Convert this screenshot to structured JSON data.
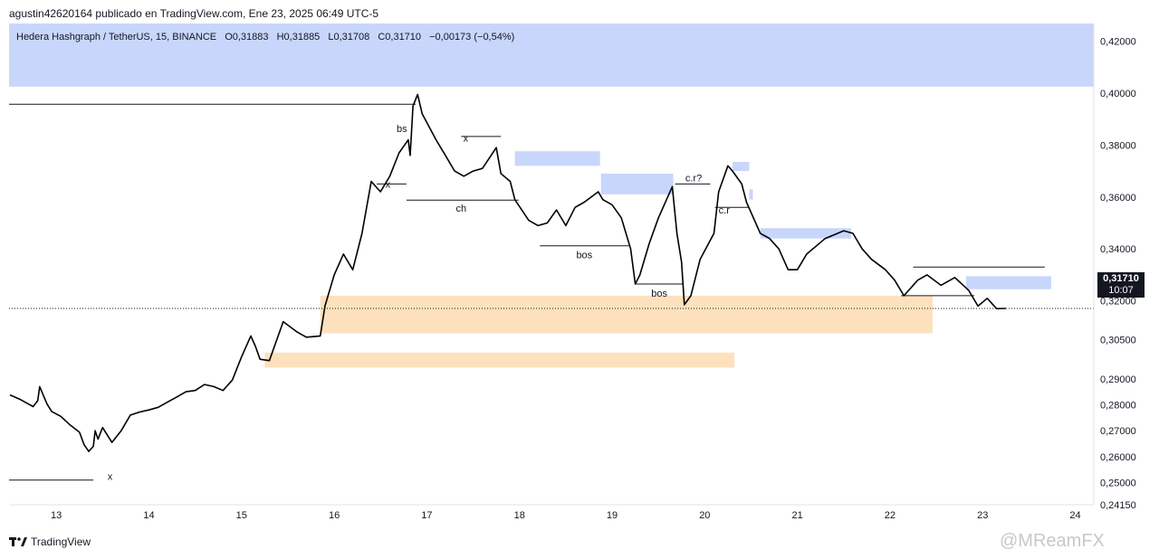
{
  "header": {
    "attribution": "agustin42620164 publicado en TradingView.com, Ene 23, 2025 06:49 UTC-5"
  },
  "symbol": {
    "name": "Hedera Hashgraph / TetherUS, 15, BINANCE",
    "open": "O0,31883",
    "high": "H0,31885",
    "low": "L0,31708",
    "close": "C0,31710",
    "change": "−0,00173 (−0,54%)"
  },
  "price_badge": {
    "price": "0,31710",
    "countdown": "10:07"
  },
  "footer": {
    "brand": "TradingView",
    "watermark": "@MReamFX"
  },
  "colors": {
    "zone_blue": "#c9d6fb",
    "zone_orange": "#fde1bd",
    "candle": "#000000",
    "badge": "#131722"
  },
  "chart_data": {
    "type": "line",
    "ylim": [
      0.2415,
      0.4268
    ],
    "xlim": [
      12.49,
      24.2
    ],
    "x_ticks": [
      {
        "v": 13,
        "label": "13"
      },
      {
        "v": 14,
        "label": "14"
      },
      {
        "v": 15,
        "label": "15"
      },
      {
        "v": 16,
        "label": "16"
      },
      {
        "v": 17,
        "label": "17"
      },
      {
        "v": 18,
        "label": "18"
      },
      {
        "v": 19,
        "label": "19"
      },
      {
        "v": 20,
        "label": "20"
      },
      {
        "v": 21,
        "label": "21"
      },
      {
        "v": 22,
        "label": "22"
      },
      {
        "v": 23,
        "label": "23"
      },
      {
        "v": 24,
        "label": "24"
      }
    ],
    "y_ticks": [
      {
        "v": 0.42,
        "label": "0,42000"
      },
      {
        "v": 0.4,
        "label": "0,40000"
      },
      {
        "v": 0.38,
        "label": "0,38000"
      },
      {
        "v": 0.36,
        "label": "0,36000"
      },
      {
        "v": 0.34,
        "label": "0,34000"
      },
      {
        "v": 0.32,
        "label": "0,32000"
      },
      {
        "v": 0.305,
        "label": "0,30500"
      },
      {
        "v": 0.29,
        "label": "0,29000"
      },
      {
        "v": 0.28,
        "label": "0,28000"
      },
      {
        "v": 0.27,
        "label": "0,27000"
      },
      {
        "v": 0.26,
        "label": "0,26000"
      },
      {
        "v": 0.25,
        "label": "0,25000"
      },
      {
        "v": 0.2415,
        "label": "0,24150"
      }
    ],
    "series": [
      {
        "points": [
          [
            12.5,
            0.2838
          ],
          [
            12.6,
            0.2822
          ],
          [
            12.75,
            0.2793
          ],
          [
            12.8,
            0.2816
          ],
          [
            12.82,
            0.287
          ],
          [
            12.9,
            0.2803
          ],
          [
            12.95,
            0.2774
          ],
          [
            13.05,
            0.2755
          ],
          [
            13.15,
            0.2722
          ],
          [
            13.25,
            0.2694
          ],
          [
            13.3,
            0.2646
          ],
          [
            13.35,
            0.262
          ],
          [
            13.4,
            0.264
          ],
          [
            13.42,
            0.27
          ],
          [
            13.45,
            0.2668
          ],
          [
            13.5,
            0.2712
          ],
          [
            13.6,
            0.2655
          ],
          [
            13.7,
            0.27
          ],
          [
            13.8,
            0.276
          ],
          [
            13.9,
            0.2772
          ],
          [
            14.0,
            0.278
          ],
          [
            14.1,
            0.279
          ],
          [
            14.2,
            0.281
          ],
          [
            14.3,
            0.283
          ],
          [
            14.4,
            0.285
          ],
          [
            14.5,
            0.2855
          ],
          [
            14.6,
            0.2878
          ],
          [
            14.7,
            0.287
          ],
          [
            14.8,
            0.2855
          ],
          [
            14.9,
            0.2895
          ],
          [
            15.0,
            0.2985
          ],
          [
            15.1,
            0.3065
          ],
          [
            15.15,
            0.3025
          ],
          [
            15.2,
            0.2975
          ],
          [
            15.3,
            0.297
          ],
          [
            15.35,
            0.302
          ],
          [
            15.45,
            0.312
          ],
          [
            15.6,
            0.308
          ],
          [
            15.7,
            0.306
          ],
          [
            15.85,
            0.3065
          ],
          [
            15.9,
            0.318
          ],
          [
            16.0,
            0.33
          ],
          [
            16.1,
            0.338
          ],
          [
            16.2,
            0.332
          ],
          [
            16.3,
            0.346
          ],
          [
            16.4,
            0.366
          ],
          [
            16.5,
            0.362
          ],
          [
            16.6,
            0.368
          ],
          [
            16.7,
            0.377
          ],
          [
            16.8,
            0.382
          ],
          [
            16.82,
            0.376
          ],
          [
            16.85,
            0.395
          ],
          [
            16.9,
            0.3995
          ],
          [
            16.95,
            0.392
          ],
          [
            17.1,
            0.382
          ],
          [
            17.2,
            0.376
          ],
          [
            17.3,
            0.37
          ],
          [
            17.4,
            0.368
          ],
          [
            17.5,
            0.37
          ],
          [
            17.6,
            0.371
          ],
          [
            17.75,
            0.379
          ],
          [
            17.8,
            0.369
          ],
          [
            17.9,
            0.366
          ],
          [
            17.95,
            0.359
          ],
          [
            18.1,
            0.351
          ],
          [
            18.2,
            0.349
          ],
          [
            18.3,
            0.35
          ],
          [
            18.4,
            0.355
          ],
          [
            18.5,
            0.349
          ],
          [
            18.6,
            0.356
          ],
          [
            18.7,
            0.358
          ],
          [
            18.85,
            0.362
          ],
          [
            18.9,
            0.359
          ],
          [
            19.0,
            0.357
          ],
          [
            19.1,
            0.352
          ],
          [
            19.2,
            0.34
          ],
          [
            19.25,
            0.3265
          ],
          [
            19.3,
            0.33
          ],
          [
            19.4,
            0.342
          ],
          [
            19.5,
            0.352
          ],
          [
            19.65,
            0.364
          ],
          [
            19.7,
            0.346
          ],
          [
            19.75,
            0.335
          ],
          [
            19.78,
            0.3185
          ],
          [
            19.85,
            0.322
          ],
          [
            19.95,
            0.336
          ],
          [
            20.1,
            0.346
          ],
          [
            20.15,
            0.362
          ],
          [
            20.25,
            0.372
          ],
          [
            20.3,
            0.37
          ],
          [
            20.4,
            0.365
          ],
          [
            20.45,
            0.358
          ],
          [
            20.5,
            0.354
          ],
          [
            20.6,
            0.346
          ],
          [
            20.7,
            0.344
          ],
          [
            20.8,
            0.34
          ],
          [
            20.9,
            0.332
          ],
          [
            21.0,
            0.332
          ],
          [
            21.1,
            0.338
          ],
          [
            21.3,
            0.344
          ],
          [
            21.5,
            0.347
          ],
          [
            21.6,
            0.346
          ],
          [
            21.7,
            0.34
          ],
          [
            21.8,
            0.336
          ],
          [
            21.95,
            0.332
          ],
          [
            22.05,
            0.328
          ],
          [
            22.15,
            0.322
          ],
          [
            22.3,
            0.328
          ],
          [
            22.4,
            0.33
          ],
          [
            22.55,
            0.326
          ],
          [
            22.7,
            0.329
          ],
          [
            22.85,
            0.324
          ],
          [
            22.95,
            0.318
          ],
          [
            23.05,
            0.321
          ],
          [
            23.15,
            0.317
          ],
          [
            23.25,
            0.3171
          ]
        ]
      }
    ],
    "zones": [
      {
        "color": "blue",
        "x1": 12.49,
        "x2": 24.2,
        "y1": 0.4025,
        "y2": 0.4268
      },
      {
        "color": "orange",
        "x1": 15.85,
        "x2": 22.46,
        "y1": 0.3075,
        "y2": 0.322
      },
      {
        "color": "orange",
        "x1": 15.25,
        "x2": 20.32,
        "y1": 0.2943,
        "y2": 0.3001
      },
      {
        "color": "blue",
        "x1": 17.95,
        "x2": 18.87,
        "y1": 0.372,
        "y2": 0.3776
      },
      {
        "color": "blue",
        "x1": 18.88,
        "x2": 19.66,
        "y1": 0.361,
        "y2": 0.369
      },
      {
        "color": "blue",
        "x1": 20.3,
        "x2": 20.48,
        "y1": 0.37,
        "y2": 0.3735
      },
      {
        "color": "blue",
        "x1": 20.48,
        "x2": 20.52,
        "y1": 0.359,
        "y2": 0.363
      },
      {
        "color": "blue",
        "x1": 20.6,
        "x2": 21.58,
        "y1": 0.344,
        "y2": 0.348
      },
      {
        "color": "blue",
        "x1": 22.82,
        "x2": 23.74,
        "y1": 0.3245,
        "y2": 0.3295
      }
    ],
    "levels": [
      {
        "x1": 12.49,
        "x2": 16.88,
        "y": 0.3957
      },
      {
        "x1": 17.37,
        "x2": 17.8,
        "y": 0.3833
      },
      {
        "x1": 16.78,
        "x2": 17.99,
        "y": 0.3588
      },
      {
        "x1": 16.46,
        "x2": 16.78,
        "y": 0.365
      },
      {
        "x1": 18.22,
        "x2": 19.19,
        "y": 0.3412
      },
      {
        "x1": 19.25,
        "x2": 19.77,
        "y": 0.3265
      },
      {
        "x1": 19.68,
        "x2": 20.06,
        "y": 0.365
      },
      {
        "x1": 20.11,
        "x2": 20.48,
        "y": 0.356
      },
      {
        "x1": 22.25,
        "x2": 23.67,
        "y": 0.333
      },
      {
        "x1": 22.12,
        "x2": 22.91,
        "y": 0.322
      },
      {
        "x1": 12.49,
        "x2": 13.4,
        "y": 0.251
      }
    ],
    "annotations": [
      {
        "text": "bs",
        "x": 16.73,
        "y": 0.385
      },
      {
        "text": "x",
        "x": 17.42,
        "y": 0.3813
      },
      {
        "text": "x",
        "x": 16.58,
        "y": 0.3635
      },
      {
        "text": "ch",
        "x": 17.37,
        "y": 0.3543
      },
      {
        "text": "bos",
        "x": 18.7,
        "y": 0.3365
      },
      {
        "text": "c.r?",
        "x": 19.88,
        "y": 0.366
      },
      {
        "text": "c.r",
        "x": 20.21,
        "y": 0.3537
      },
      {
        "text": "bos",
        "x": 19.51,
        "y": 0.3216
      },
      {
        "text": "x",
        "x": 13.58,
        "y": 0.251
      }
    ],
    "last_price": 0.3171,
    "grid": false,
    "legend": "none"
  }
}
